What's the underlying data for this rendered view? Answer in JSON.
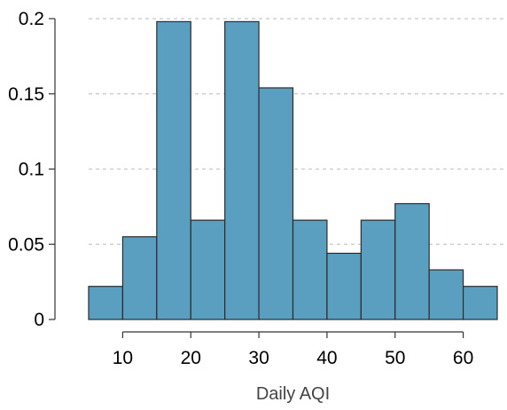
{
  "chart_data": {
    "type": "bar",
    "subtype": "histogram",
    "xlabel": "Daily AQI",
    "ylabel": "",
    "title": "",
    "bin_edges": [
      5,
      10,
      15,
      20,
      25,
      30,
      35,
      40,
      45,
      50,
      55,
      60,
      65
    ],
    "values": [
      0.022,
      0.055,
      0.198,
      0.066,
      0.198,
      0.154,
      0.066,
      0.044,
      0.066,
      0.077,
      0.033,
      0.022
    ],
    "xlim": [
      5,
      65
    ],
    "ylim": [
      0,
      0.2
    ],
    "x_ticks": [
      10,
      20,
      30,
      40,
      50,
      60
    ],
    "x_tick_labels": [
      "10",
      "20",
      "30",
      "40",
      "50",
      "60"
    ],
    "y_ticks": [
      0,
      0.05,
      0.1,
      0.15,
      0.2
    ],
    "y_tick_labels": [
      "0",
      "0.05",
      "0.1",
      "0.15",
      "0.2"
    ],
    "grid": "horizontal dashed",
    "bar_color": "#5a9fc0",
    "bar_edge_color": "#2b2b2b",
    "grid_color": "#c8c8c8"
  }
}
